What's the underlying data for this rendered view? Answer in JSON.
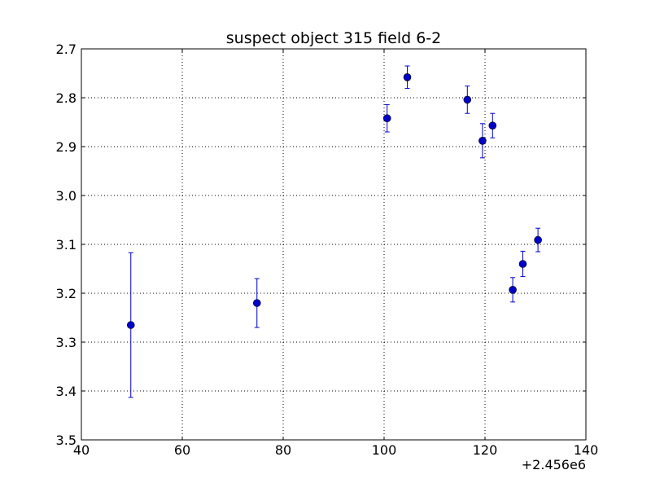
{
  "chart_data": {
    "type": "scatter",
    "title": "suspect object 315 field 6-2",
    "xlabel": "",
    "ylabel": "",
    "x_offset_label": "+2.456e6",
    "xlim": [
      40,
      140
    ],
    "ylim": [
      3.5,
      2.7
    ],
    "y_inverted": true,
    "grid": true,
    "x_ticks": [
      "40",
      "60",
      "80",
      "100",
      "120",
      "140"
    ],
    "x_tick_values": [
      40,
      60,
      80,
      100,
      120,
      140
    ],
    "y_ticks": [
      "2.7",
      "2.8",
      "2.9",
      "3.0",
      "3.1",
      "3.2",
      "3.3",
      "3.4",
      "3.5"
    ],
    "y_tick_values": [
      2.7,
      2.8,
      2.9,
      3.0,
      3.1,
      3.2,
      3.3,
      3.4,
      3.5
    ],
    "series": [
      {
        "color": "#0000cc",
        "marker": "circle",
        "points": [
          {
            "x": 49.8,
            "y": 3.265,
            "err": 0.148
          },
          {
            "x": 74.8,
            "y": 3.22,
            "err": 0.05
          },
          {
            "x": 100.6,
            "y": 2.842,
            "err": 0.028
          },
          {
            "x": 104.6,
            "y": 2.758,
            "err": 0.023
          },
          {
            "x": 116.5,
            "y": 2.804,
            "err": 0.028
          },
          {
            "x": 119.5,
            "y": 2.888,
            "err": 0.035
          },
          {
            "x": 121.5,
            "y": 2.857,
            "err": 0.025
          },
          {
            "x": 125.5,
            "y": 3.193,
            "err": 0.025
          },
          {
            "x": 127.5,
            "y": 3.14,
            "err": 0.026
          },
          {
            "x": 130.5,
            "y": 3.091,
            "err": 0.024
          }
        ]
      }
    ]
  }
}
